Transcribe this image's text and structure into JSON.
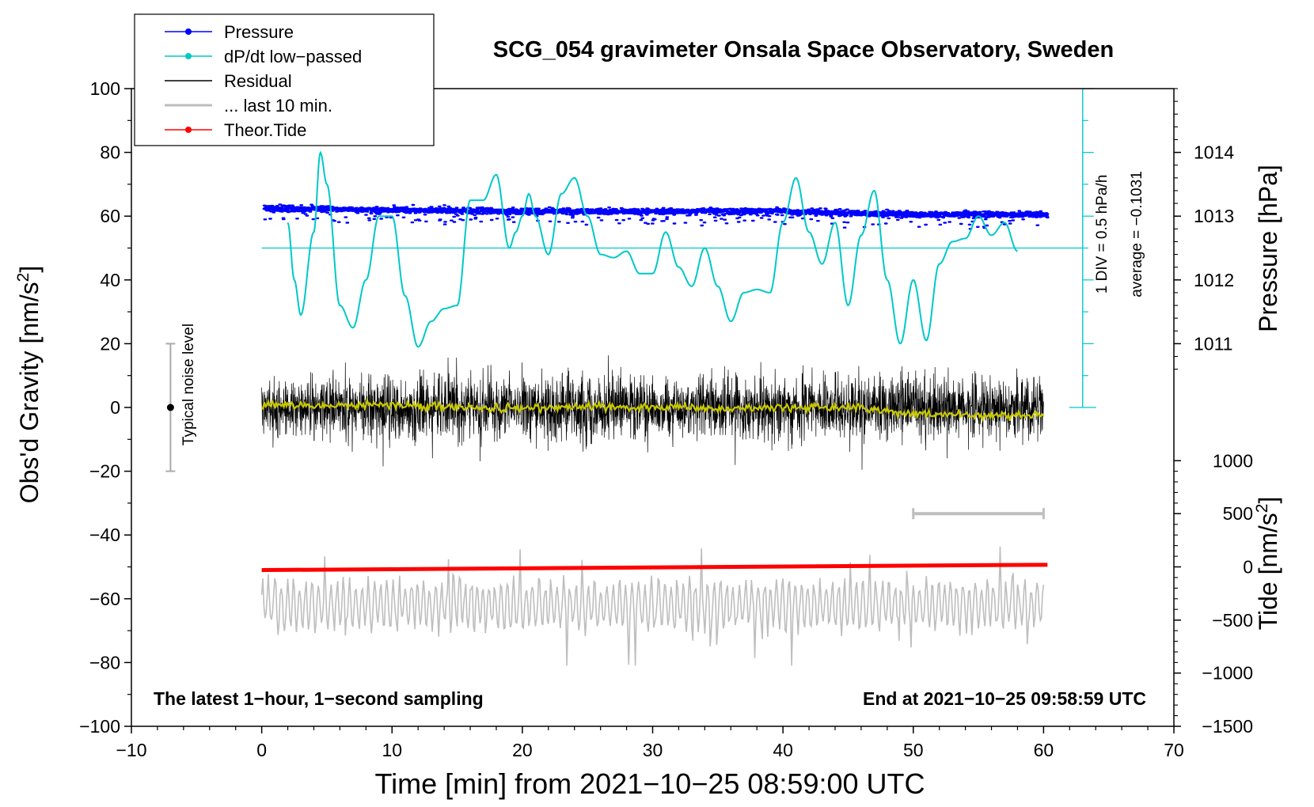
{
  "chart_data": {
    "type": "line",
    "title": "SCG_054 gravimeter Onsala Space Observatory, Sweden",
    "xlabel": "Time [min] from 2021−10−25 08:59:00 UTC",
    "ylabel_left": "Obs'd Gravity [nm/s²]",
    "ylabel_right_pressure": "Pressure [hPa]",
    "ylabel_right_tide": "Tide [nm/s²]",
    "xlim": [
      -10,
      70
    ],
    "ylim": [
      -100,
      100
    ],
    "x_ticks": [
      {
        "v": -10,
        "label": "−10"
      },
      {
        "v": 0,
        "label": "0"
      },
      {
        "v": 10,
        "label": "10"
      },
      {
        "v": 20,
        "label": "20"
      },
      {
        "v": 30,
        "label": "30"
      },
      {
        "v": 40,
        "label": "40"
      },
      {
        "v": 50,
        "label": "50"
      },
      {
        "v": 60,
        "label": "60"
      },
      {
        "v": 70,
        "label": "70"
      }
    ],
    "y_ticks": [
      {
        "v": 100,
        "label": "100"
      },
      {
        "v": 80,
        "label": "80"
      },
      {
        "v": 60,
        "label": "60"
      },
      {
        "v": 40,
        "label": "40"
      },
      {
        "v": 20,
        "label": "20"
      },
      {
        "v": 0,
        "label": "0"
      },
      {
        "v": -20,
        "label": "−20"
      },
      {
        "v": -40,
        "label": "−40"
      },
      {
        "v": -60,
        "label": "−60"
      },
      {
        "v": -80,
        "label": "−80"
      },
      {
        "v": -100,
        "label": "−100"
      }
    ],
    "pressure_axis": {
      "ticks": [
        {
          "hpa": 1014,
          "gravity": 80,
          "label": "1014"
        },
        {
          "hpa": 1013,
          "gravity": 60,
          "label": "1013"
        },
        {
          "hpa": 1012,
          "gravity": 40,
          "label": "1012"
        },
        {
          "hpa": 1011,
          "gravity": 20,
          "label": "1011"
        }
      ]
    },
    "tide_axis": {
      "ticks": [
        {
          "tide": 1000,
          "gravity": -16.7,
          "label": "1000"
        },
        {
          "tide": 500,
          "gravity": -33.3,
          "label": "500"
        },
        {
          "tide": 0,
          "gravity": -50,
          "label": "0"
        },
        {
          "tide": -500,
          "gravity": -66.7,
          "label": "−500"
        },
        {
          "tide": -1000,
          "gravity": -83.3,
          "label": "−1000"
        },
        {
          "tide": -1500,
          "gravity": -100,
          "label": "−1500"
        }
      ]
    },
    "legend": {
      "placement": "top-left",
      "items": [
        {
          "label": "Pressure",
          "color": "#0000ff",
          "marker": true
        },
        {
          "label": "dP/dt low−passed",
          "color": "#00c8c8",
          "marker": true
        },
        {
          "label": "Residual",
          "color": "#000000",
          "marker": false
        },
        {
          "label": "... last 10 min.",
          "color": "#bebebe",
          "marker": false
        },
        {
          "label": "Theor.Tide",
          "color": "#ff0000",
          "marker": true
        }
      ]
    },
    "colors": {
      "pressure": "#0000ff",
      "dpdt": "#00c8c8",
      "residual": "#000000",
      "smoothed": "#c8c800",
      "last10": "#bebebe",
      "tide": "#ff0000",
      "noise": "#aaaaaa"
    },
    "dpdt_scale": {
      "label_div": "1 DIV = 0.5 hPa/h",
      "label_avg": "average = −0.1031",
      "axis_x": 63,
      "axis_top": 100,
      "axis_bottom": 0,
      "baseline": 50,
      "baseline_x": [
        0,
        63
      ]
    },
    "noise_level": {
      "label": "Typical noise level",
      "x": -7,
      "center": 0,
      "low": -20,
      "high": 20
    },
    "last10_bar": {
      "x_start": 50,
      "x_end": 60,
      "y": -33.3
    },
    "annotations": {
      "bottom_left": "The latest 1−hour, 1−second sampling",
      "bottom_right": "End at 2021−10−25 09:58:59 UTC"
    },
    "series": [
      {
        "name": "Pressure",
        "style": "points",
        "x_range": [
          0.2,
          60.3
        ],
        "trend": [
          {
            "x": 0,
            "y": 62.5
          },
          {
            "x": 20,
            "y": 61.5
          },
          {
            "x": 40,
            "y": 61.5
          },
          {
            "x": 50,
            "y": 60.5
          },
          {
            "x": 60.3,
            "y": 60.5
          }
        ],
        "scatter": 1.2
      },
      {
        "name": "dP/dt low-passed",
        "style": "line",
        "x": [
          2.0,
          2.5,
          3.0,
          4.0,
          4.5,
          5.0,
          6.0,
          7.0,
          8.0,
          9.0,
          10.0,
          11.0,
          12.0,
          13.0,
          14.0,
          15.0,
          16.0,
          17.0,
          18.0,
          19.0,
          19.5,
          20.0,
          20.5,
          21.0,
          22.0,
          23.0,
          24.0,
          25.0,
          26.0,
          27.0,
          28.0,
          29.0,
          30.0,
          31.0,
          32.0,
          33.0,
          34.0,
          35.0,
          36.0,
          37.0,
          38.0,
          39.0,
          40.0,
          41.0,
          42.0,
          43.0,
          44.0,
          45.0,
          46.0,
          47.0,
          48.0,
          49.0,
          50.0,
          51.0,
          52.0,
          53.0,
          54.0,
          55.0,
          56.0,
          57.0,
          58.0
        ],
        "y": [
          58,
          40,
          29,
          55,
          80,
          70,
          32,
          25,
          40,
          60,
          60,
          35,
          19,
          27,
          31,
          32,
          65,
          65,
          73,
          50,
          55,
          60,
          67,
          60,
          48,
          67,
          72,
          60,
          48,
          47,
          49,
          42,
          42,
          55,
          44,
          38,
          50,
          38,
          27,
          36,
          37,
          36,
          58,
          72,
          55,
          45,
          58,
          32,
          54,
          68,
          40,
          20,
          40,
          21,
          45,
          52,
          53,
          60,
          54,
          58,
          49
        ]
      },
      {
        "name": "Residual",
        "style": "line",
        "x_range": [
          0,
          60
        ],
        "y_center": 0,
        "amplitude": 8
      },
      {
        "name": "Residual smoothed",
        "style": "line",
        "x": [
          0,
          5,
          10,
          15,
          20,
          25,
          30,
          35,
          40,
          45,
          50,
          55,
          60
        ],
        "y": [
          1.0,
          0.5,
          1.0,
          0.0,
          -0.5,
          0.5,
          0.0,
          -0.5,
          0.0,
          0.0,
          -2.0,
          -2.5,
          -2.5
        ]
      },
      {
        "name": "... last 10 min.",
        "style": "line",
        "x_range": [
          0,
          60
        ],
        "y_center": -62,
        "y_range": [
          -81,
          -37
        ]
      },
      {
        "name": "Theor.Tide",
        "style": "line",
        "x": [
          0,
          60.3
        ],
        "tide": [
          -30,
          20
        ]
      }
    ]
  }
}
